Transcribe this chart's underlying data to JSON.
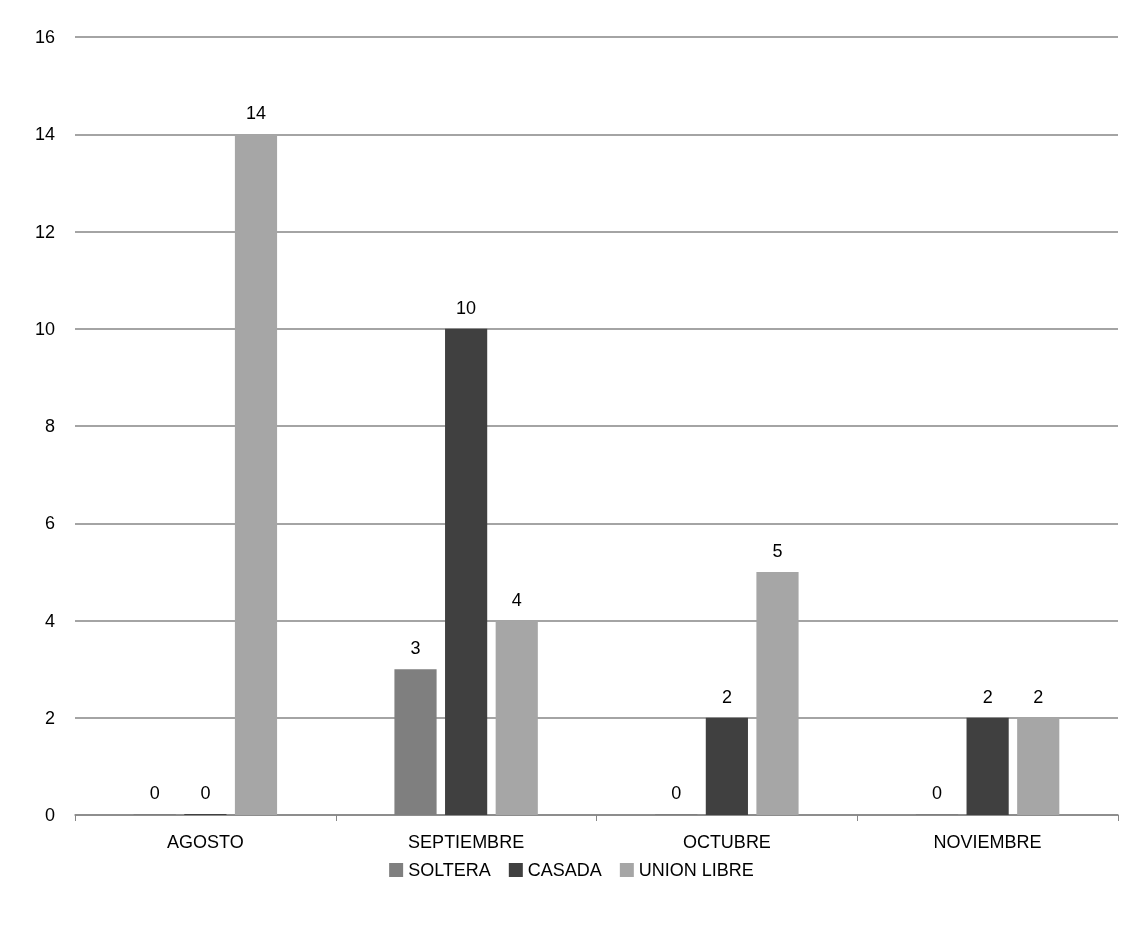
{
  "chart_data": {
    "type": "bar",
    "categories": [
      "AGOSTO",
      "SEPTIEMBRE",
      "OCTUBRE",
      "NOVIEMBRE"
    ],
    "series": [
      {
        "name": "SOLTERA",
        "color": "#7f7f7f",
        "values": [
          0,
          3,
          0,
          0
        ]
      },
      {
        "name": "CASADA",
        "color": "#404040",
        "values": [
          0,
          10,
          2,
          2
        ]
      },
      {
        "name": "UNION LIBRE",
        "color": "#a6a6a6",
        "values": [
          14,
          4,
          5,
          2
        ]
      }
    ],
    "ylim": [
      0,
      16
    ],
    "yticks": [
      0,
      2,
      4,
      6,
      8,
      10,
      12,
      14,
      16
    ],
    "grid": "y",
    "legend": "bottom",
    "data_labels": true
  }
}
